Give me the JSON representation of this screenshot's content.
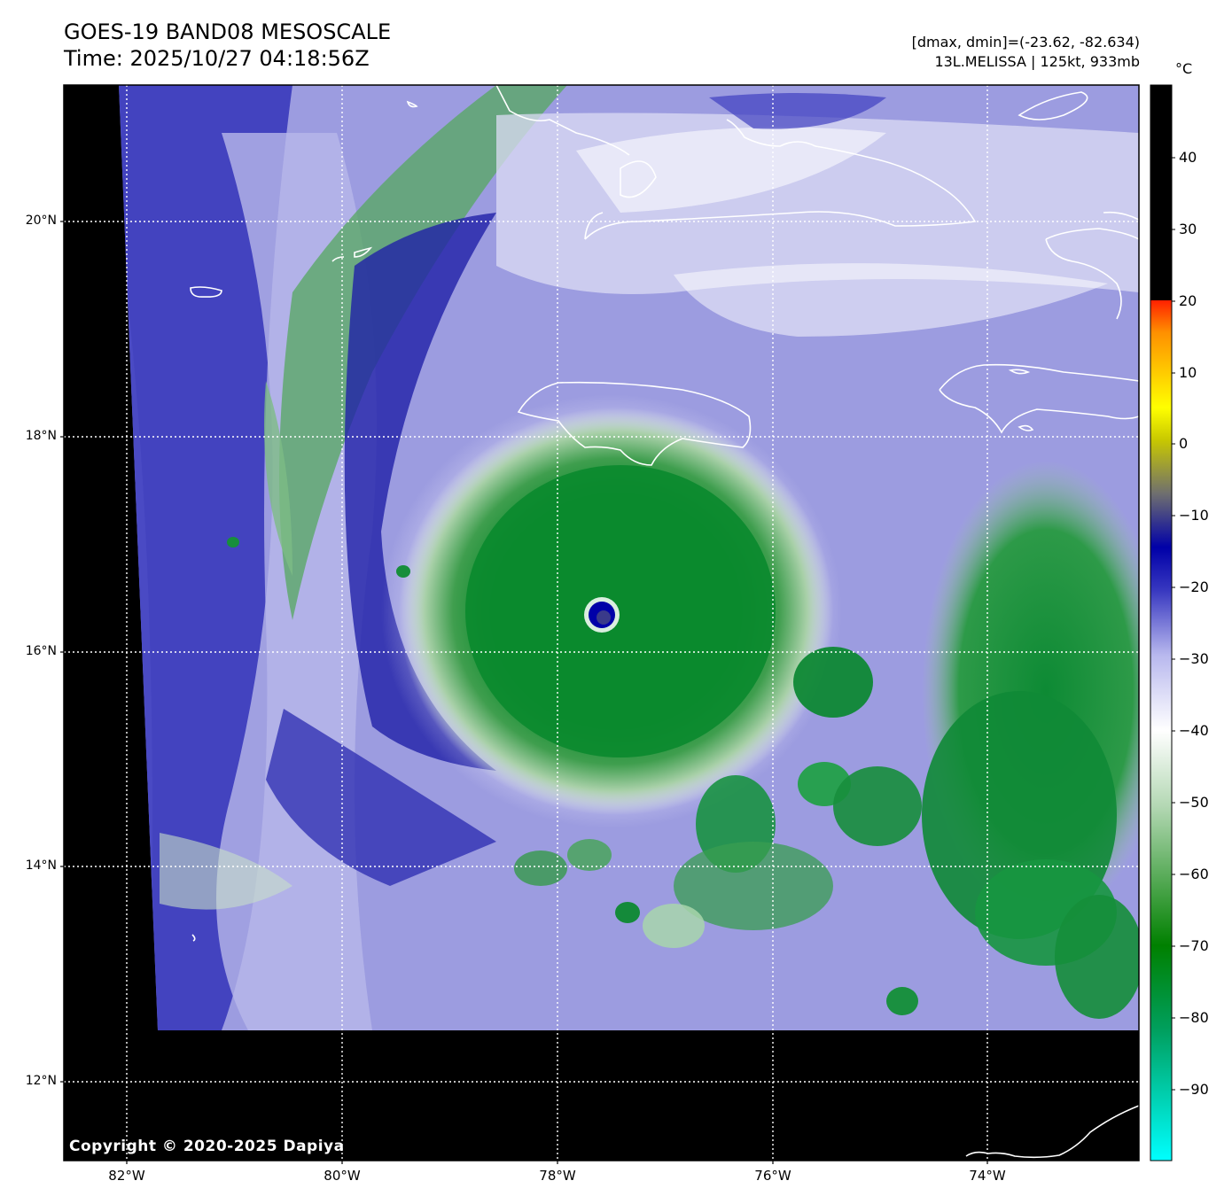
{
  "header": {
    "title_line1": "GOES-19 BAND08 MESOSCALE",
    "title_line2": "Time: 2025/10/27 04:18:56Z",
    "dmax_dmin": "[dmax, dmin]=(-23.62, -82.634)",
    "storm_info": "13L.MELISSA | 125kt, 933mb"
  },
  "map": {
    "lat_labels": [
      "20°N",
      "18°N",
      "16°N",
      "14°N",
      "12°N"
    ],
    "lon_labels": [
      "82°W",
      "80°W",
      "78°W",
      "76°W",
      "74°W"
    ],
    "copyright": "Copyright © 2020-2025 Dapiya",
    "features": [
      "jamaica-coastline",
      "cuba-coastline",
      "hispaniola-coastline",
      "colombia-coastline",
      "hurricane-eye"
    ]
  },
  "colorbar": {
    "unit": "°C",
    "ticks": [
      "40",
      "30",
      "20",
      "10",
      "0",
      "−10",
      "−20",
      "−30",
      "−40",
      "−50",
      "−60",
      "−70",
      "−80",
      "−90"
    ],
    "colors": {
      "warm_top": "#000000",
      "red": "#ff2000",
      "yellow": "#ffff00",
      "gray": "#6f6f6f",
      "dark_blue": "#0000a8",
      "lavender": "#b8b8ee",
      "white": "#ffffff",
      "green": "#008000",
      "cyan": "#00ffff"
    }
  }
}
